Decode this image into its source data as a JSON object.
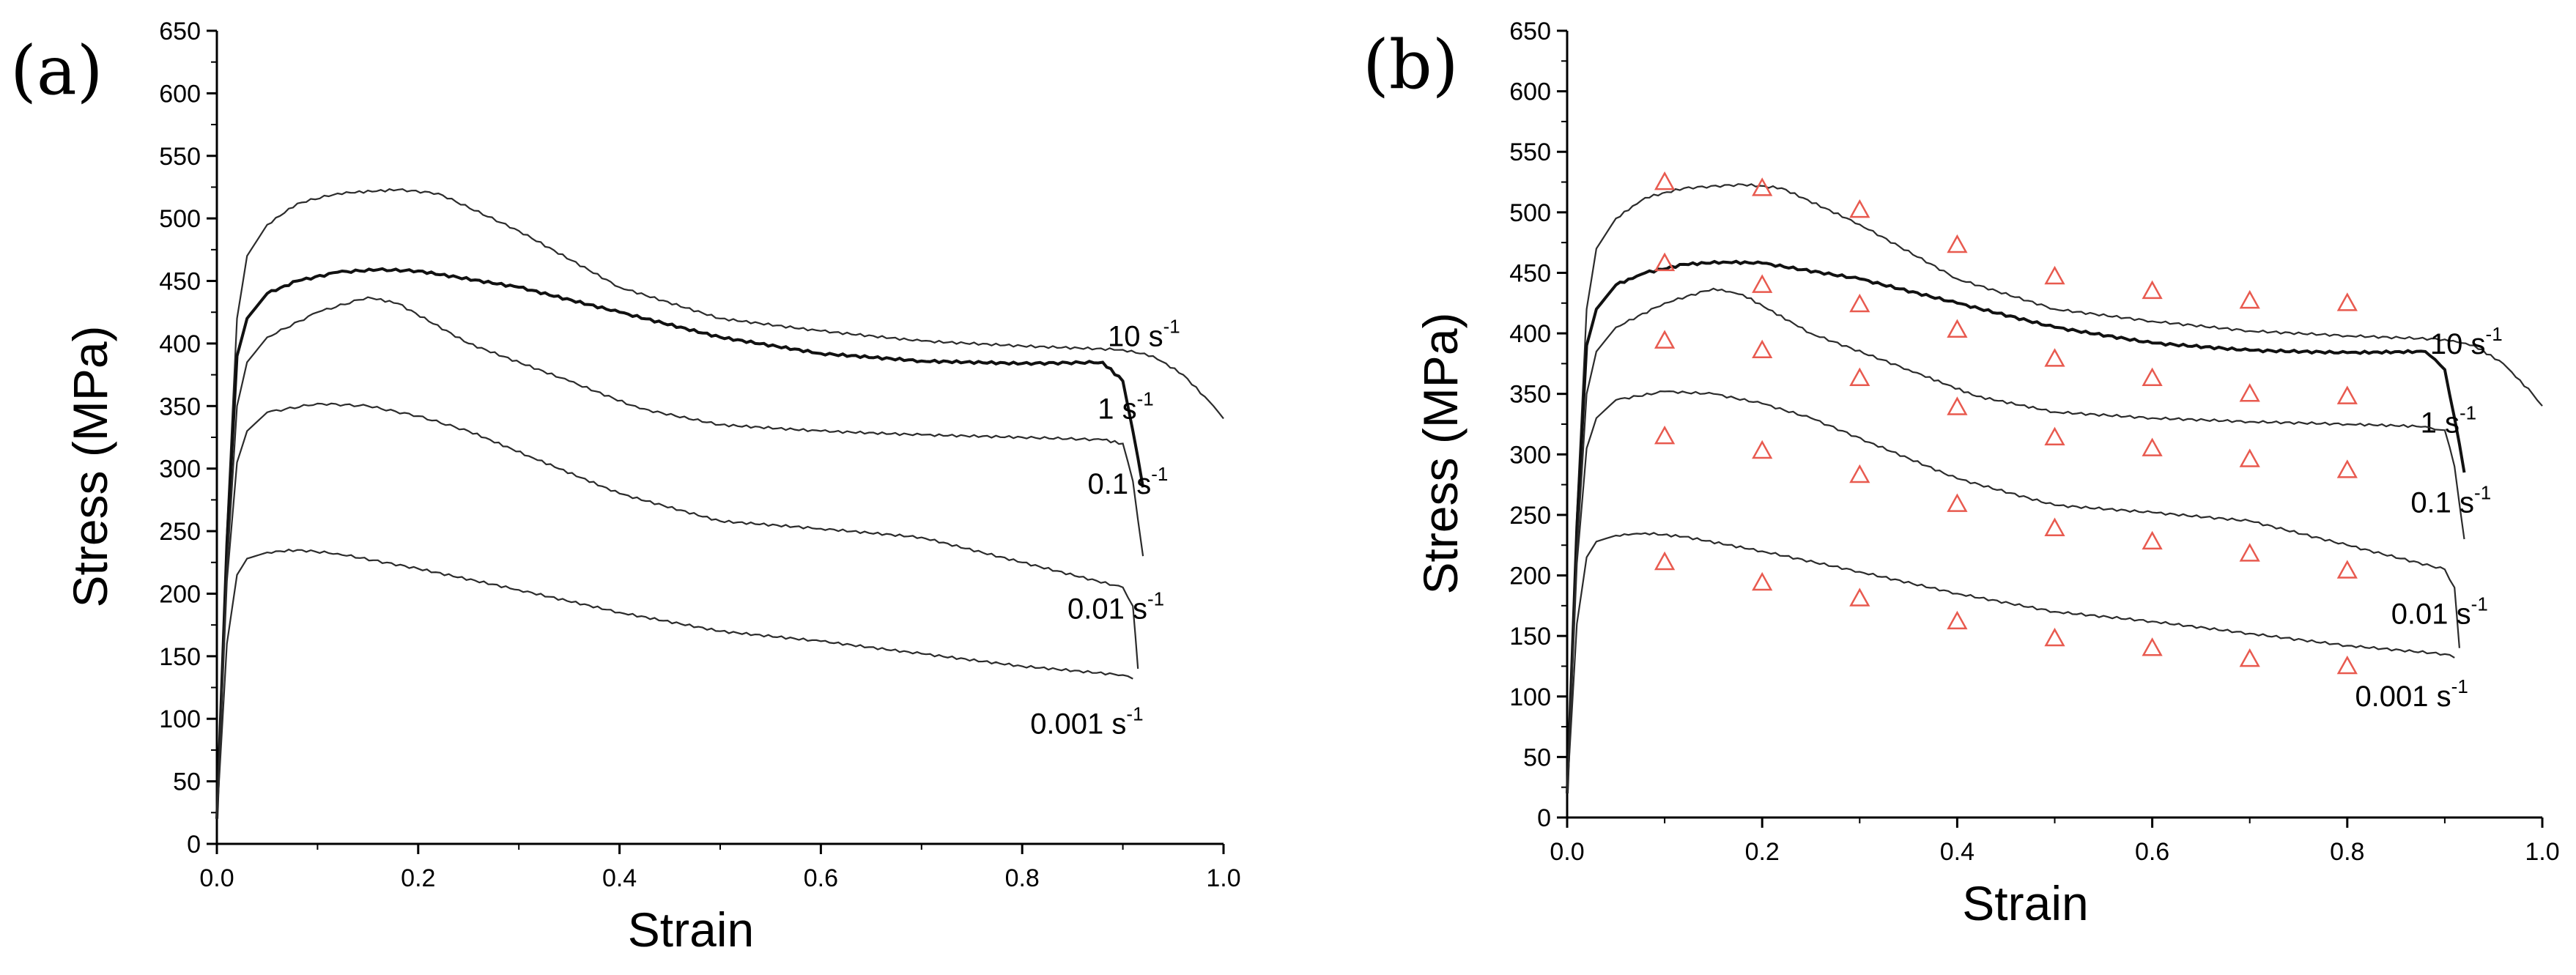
{
  "chart_data": [
    {
      "panel": "(a)",
      "type": "line",
      "xlabel": "Strain",
      "ylabel": "Stress (MPa)",
      "xlim": [
        0.0,
        1.0
      ],
      "ylim": [
        0,
        650
      ],
      "xticks": [
        "0.0",
        "0.2",
        "0.4",
        "0.6",
        "0.8",
        "1.0"
      ],
      "yticks": [
        "0",
        "50",
        "100",
        "150",
        "200",
        "250",
        "300",
        "350",
        "400",
        "450",
        "500",
        "550",
        "600",
        "650"
      ],
      "series": [
        {
          "name": "10 s-1",
          "label": "10 s",
          "sup": "-1",
          "x": [
            0.0,
            0.01,
            0.02,
            0.03,
            0.05,
            0.08,
            0.12,
            0.18,
            0.22,
            0.3,
            0.4,
            0.5,
            0.6,
            0.7,
            0.8,
            0.9,
            0.93,
            0.96,
            0.99,
            1.0
          ],
          "y": [
            20,
            250,
            420,
            470,
            495,
            512,
            520,
            523,
            520,
            490,
            445,
            420,
            410,
            402,
            398,
            395,
            390,
            375,
            350,
            340
          ]
        },
        {
          "name": "1 s-1",
          "label": "1 s",
          "sup": "-1",
          "x": [
            0.0,
            0.01,
            0.02,
            0.03,
            0.05,
            0.08,
            0.12,
            0.16,
            0.2,
            0.3,
            0.4,
            0.5,
            0.6,
            0.7,
            0.8,
            0.88,
            0.9,
            0.91,
            0.92
          ],
          "y": [
            20,
            240,
            390,
            420,
            440,
            450,
            457,
            459,
            458,
            445,
            425,
            405,
            392,
            386,
            384,
            385,
            370,
            330,
            285
          ]
        },
        {
          "name": "0.1 s-1",
          "label": "0.1 s",
          "sup": "-1",
          "x": [
            0.0,
            0.01,
            0.02,
            0.03,
            0.05,
            0.1,
            0.15,
            0.18,
            0.25,
            0.35,
            0.42,
            0.5,
            0.6,
            0.7,
            0.8,
            0.88,
            0.9,
            0.91,
            0.92
          ],
          "y": [
            20,
            220,
            350,
            385,
            405,
            425,
            437,
            432,
            400,
            370,
            348,
            335,
            330,
            327,
            325,
            323,
            320,
            290,
            230
          ]
        },
        {
          "name": "0.01 s-1",
          "label": "0.01 s",
          "sup": "-1",
          "x": [
            0.0,
            0.01,
            0.02,
            0.03,
            0.05,
            0.1,
            0.15,
            0.2,
            0.25,
            0.31,
            0.4,
            0.5,
            0.6,
            0.7,
            0.8,
            0.9,
            0.91,
            0.915
          ],
          "y": [
            20,
            210,
            305,
            330,
            345,
            352,
            350,
            342,
            330,
            310,
            280,
            258,
            252,
            245,
            225,
            205,
            190,
            140
          ]
        },
        {
          "name": "0.001 s-1",
          "label": "0.001 s",
          "sup": "-1",
          "x": [
            0.0,
            0.01,
            0.02,
            0.03,
            0.05,
            0.08,
            0.12,
            0.2,
            0.3,
            0.4,
            0.5,
            0.6,
            0.7,
            0.8,
            0.9,
            0.91
          ],
          "y": [
            20,
            160,
            215,
            228,
            233,
            235,
            232,
            220,
            203,
            185,
            170,
            162,
            152,
            142,
            135,
            132
          ]
        }
      ]
    },
    {
      "panel": "(b)",
      "type": "line",
      "xlabel": "Strain",
      "ylabel": "Stress (MPa)",
      "xlim": [
        0.0,
        1.0
      ],
      "ylim": [
        0,
        650
      ],
      "xticks": [
        "0.0",
        "0.2",
        "0.4",
        "0.6",
        "0.8",
        "1.0"
      ],
      "yticks": [
        "0",
        "50",
        "100",
        "150",
        "200",
        "250",
        "300",
        "350",
        "400",
        "450",
        "500",
        "550",
        "600",
        "650"
      ],
      "series": [
        {
          "name": "10 s-1",
          "label": "10 s",
          "sup": "-1",
          "x": [
            0.0,
            0.01,
            0.02,
            0.03,
            0.05,
            0.08,
            0.12,
            0.18,
            0.22,
            0.3,
            0.4,
            0.5,
            0.6,
            0.7,
            0.8,
            0.9,
            0.93,
            0.96,
            0.99,
            1.0
          ],
          "y": [
            20,
            250,
            420,
            470,
            495,
            512,
            520,
            523,
            520,
            490,
            445,
            420,
            410,
            402,
            398,
            395,
            390,
            375,
            350,
            340
          ]
        },
        {
          "name": "1 s-1",
          "label": "1 s",
          "sup": "-1",
          "x": [
            0.0,
            0.01,
            0.02,
            0.03,
            0.05,
            0.08,
            0.12,
            0.16,
            0.2,
            0.3,
            0.4,
            0.5,
            0.6,
            0.7,
            0.8,
            0.88,
            0.9,
            0.91,
            0.92
          ],
          "y": [
            20,
            240,
            390,
            420,
            440,
            450,
            457,
            459,
            458,
            445,
            425,
            405,
            392,
            386,
            384,
            385,
            370,
            330,
            285
          ]
        },
        {
          "name": "0.1 s-1",
          "label": "0.1 s",
          "sup": "-1",
          "x": [
            0.0,
            0.01,
            0.02,
            0.03,
            0.05,
            0.1,
            0.15,
            0.18,
            0.25,
            0.35,
            0.42,
            0.5,
            0.6,
            0.7,
            0.8,
            0.88,
            0.9,
            0.91,
            0.92
          ],
          "y": [
            20,
            220,
            350,
            385,
            405,
            425,
            437,
            432,
            400,
            370,
            348,
            335,
            330,
            327,
            325,
            323,
            320,
            290,
            230
          ]
        },
        {
          "name": "0.01 s-1",
          "label": "0.01 s",
          "sup": "-1",
          "x": [
            0.0,
            0.01,
            0.02,
            0.03,
            0.05,
            0.1,
            0.15,
            0.2,
            0.25,
            0.31,
            0.4,
            0.5,
            0.6,
            0.7,
            0.8,
            0.9,
            0.91,
            0.915
          ],
          "y": [
            20,
            210,
            305,
            330,
            345,
            352,
            350,
            342,
            330,
            310,
            280,
            258,
            252,
            245,
            225,
            205,
            190,
            140
          ]
        },
        {
          "name": "0.001 s-1",
          "label": "0.001 s",
          "sup": "-1",
          "x": [
            0.0,
            0.01,
            0.02,
            0.03,
            0.05,
            0.08,
            0.12,
            0.2,
            0.3,
            0.4,
            0.5,
            0.6,
            0.7,
            0.8,
            0.9,
            0.91
          ],
          "y": [
            20,
            160,
            215,
            228,
            233,
            235,
            232,
            220,
            203,
            185,
            170,
            162,
            152,
            142,
            135,
            132
          ]
        }
      ],
      "markers": {
        "shape": "triangle",
        "color": "#e85a4f",
        "x": [
          0.1,
          0.2,
          0.3,
          0.4,
          0.5,
          0.6,
          0.7,
          0.8
        ],
        "series": [
          {
            "name": "10 s-1",
            "y": [
              525,
              520,
              502,
              473,
              447,
              435,
              427,
              425
            ]
          },
          {
            "name": "1 s-1",
            "y": [
              458,
              440,
              424,
              403,
              379,
              363,
              350,
              348
            ]
          },
          {
            "name": "0.1 s-1",
            "y": [
              394,
              386,
              363,
              339,
              314,
              305,
              296,
              287
            ]
          },
          {
            "name": "0.01 s-1",
            "y": [
              315,
              303,
              283,
              259,
              239,
              228,
              218,
              204
            ]
          },
          {
            "name": "0.001 s-1",
            "y": [
              211,
              194,
              181,
              162,
              148,
              140,
              131,
              125
            ]
          }
        ]
      }
    }
  ]
}
